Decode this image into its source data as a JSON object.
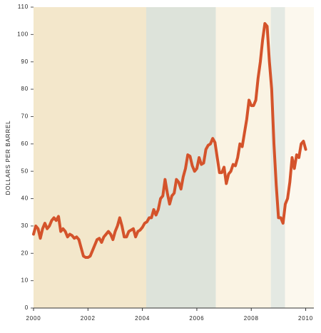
{
  "chart_data": {
    "type": "line",
    "y_label": "DOLLARS PER BARREL",
    "xlim": [
      2000,
      2010.3
    ],
    "xticks": [
      2000,
      2002,
      2004,
      2006,
      2008,
      2010
    ],
    "ylim": [
      0,
      110
    ],
    "yticks": [
      0,
      10,
      20,
      30,
      40,
      50,
      60,
      70,
      80,
      90,
      100,
      110
    ],
    "shaded_periods": [
      {
        "start": 2000,
        "end": 2004.14,
        "color": "#f3e7cb"
      },
      {
        "start": 2004.14,
        "end": 2006.7,
        "color": "#dde3da"
      },
      {
        "start": 2006.7,
        "end": 2008.72,
        "color": "#faf3e3"
      },
      {
        "start": 2008.72,
        "end": 2009.24,
        "color": "#e4e9e3"
      },
      {
        "start": 2009.24,
        "end": 2010.3,
        "color": "#fcf8ee"
      }
    ],
    "x": [
      2000,
      2000.083,
      2000.167,
      2000.25,
      2000.333,
      2000.417,
      2000.5,
      2000.583,
      2000.667,
      2000.75,
      2000.833,
      2000.917,
      2001,
      2001.083,
      2001.167,
      2001.25,
      2001.333,
      2001.417,
      2001.5,
      2001.583,
      2001.667,
      2001.75,
      2001.833,
      2001.917,
      2002,
      2002.083,
      2002.167,
      2002.25,
      2002.333,
      2002.417,
      2002.5,
      2002.583,
      2002.667,
      2002.75,
      2002.833,
      2002.917,
      2003,
      2003.083,
      2003.167,
      2003.25,
      2003.333,
      2003.417,
      2003.5,
      2003.583,
      2003.667,
      2003.75,
      2003.833,
      2003.917,
      2004,
      2004.083,
      2004.167,
      2004.25,
      2004.333,
      2004.417,
      2004.5,
      2004.583,
      2004.667,
      2004.75,
      2004.833,
      2004.917,
      2005,
      2005.083,
      2005.167,
      2005.25,
      2005.333,
      2005.417,
      2005.5,
      2005.583,
      2005.667,
      2005.75,
      2005.833,
      2005.917,
      2006,
      2006.083,
      2006.167,
      2006.25,
      2006.333,
      2006.417,
      2006.5,
      2006.583,
      2006.667,
      2006.75,
      2006.833,
      2006.917,
      2007,
      2007.083,
      2007.167,
      2007.25,
      2007.333,
      2007.417,
      2007.5,
      2007.583,
      2007.667,
      2007.75,
      2007.833,
      2007.917,
      2008,
      2008.083,
      2008.167,
      2008.25,
      2008.333,
      2008.417,
      2008.5,
      2008.583,
      2008.667,
      2008.75,
      2008.833,
      2008.917,
      2009,
      2009.083,
      2009.167,
      2009.25,
      2009.333,
      2009.417,
      2009.5,
      2009.583,
      2009.667,
      2009.75,
      2009.833,
      2009.917,
      2010
    ],
    "series": [
      {
        "color": "#d4532b",
        "values": [
          27,
          30,
          29,
          25.5,
          29,
          31,
          29,
          30,
          32,
          33,
          32,
          33.5,
          28,
          29,
          28,
          26,
          27,
          26.5,
          25.5,
          26,
          25,
          22,
          19,
          18.5,
          18.5,
          19,
          21,
          23,
          25,
          25.5,
          24,
          26,
          27,
          28,
          27,
          25,
          28,
          30,
          33,
          30,
          26,
          26,
          28,
          28.5,
          29,
          26,
          28,
          28.5,
          29.5,
          31,
          31.5,
          33,
          33,
          36,
          34,
          36,
          40,
          41,
          47,
          42,
          38,
          41,
          42,
          47,
          46,
          43.5,
          48,
          51,
          56,
          55.5,
          52,
          50,
          51,
          55,
          52.5,
          53,
          58,
          59.5,
          60,
          62,
          60.5,
          55,
          49.5,
          49.5,
          51.5,
          45.5,
          49,
          50,
          52.5,
          52,
          55,
          60,
          59,
          64,
          69,
          76,
          74,
          74,
          76,
          84,
          90,
          98,
          104,
          103,
          90,
          80,
          60,
          45,
          33,
          33,
          31,
          38,
          40,
          46,
          55,
          51,
          56,
          55,
          60,
          61,
          58
        ]
      }
    ]
  }
}
